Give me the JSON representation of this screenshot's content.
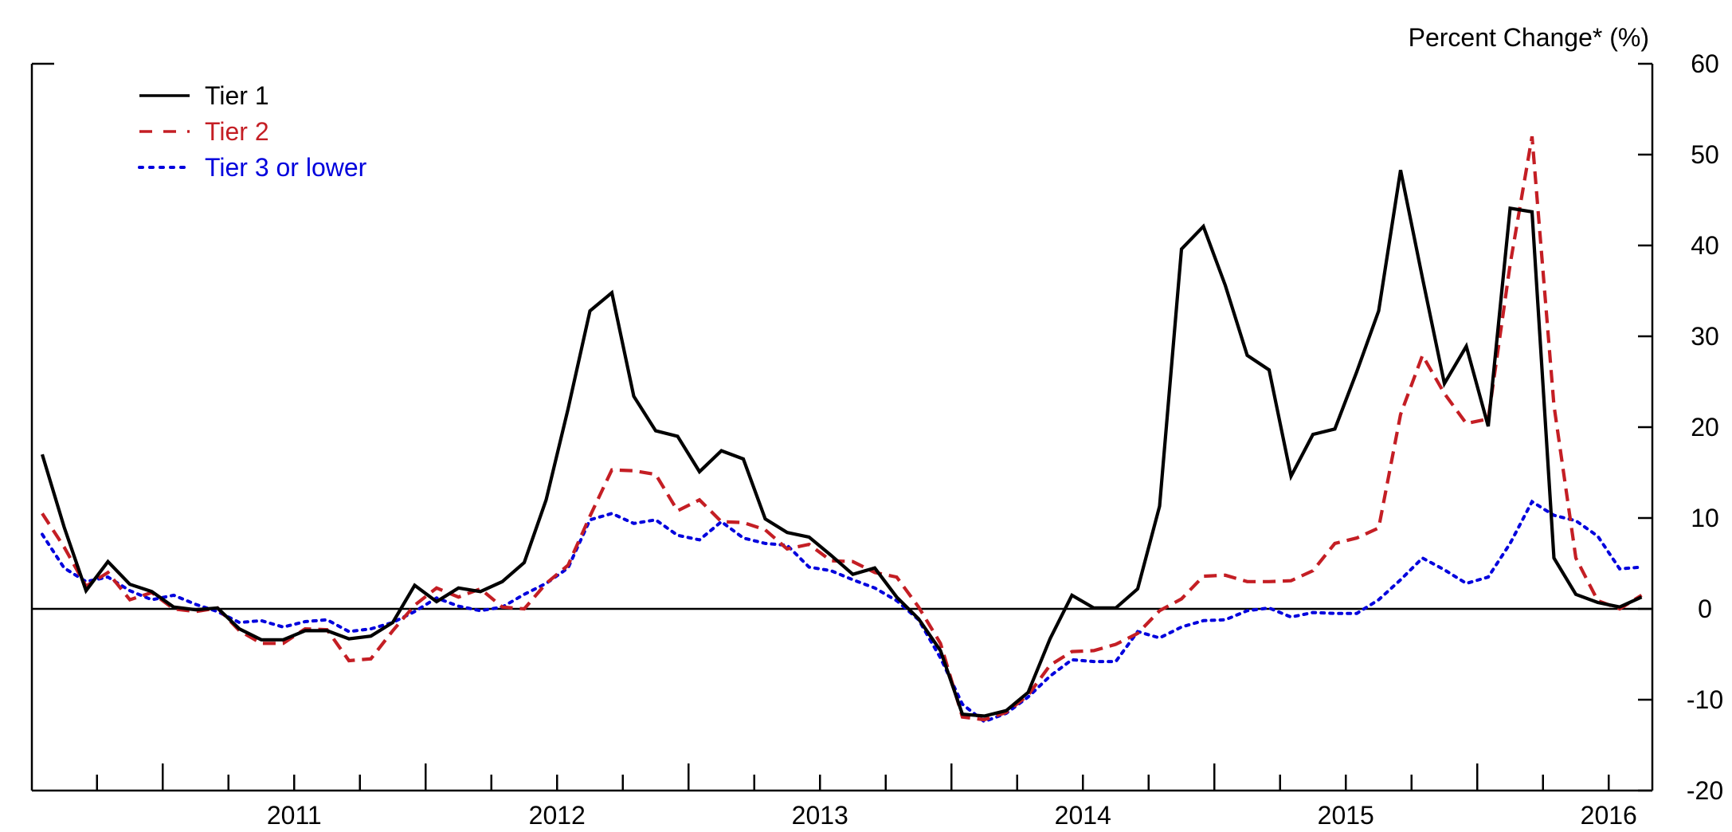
{
  "chart_data": {
    "type": "line",
    "title": "",
    "xlabel": "",
    "ylabel": "Percent Change* (%)",
    "ylim": [
      -20,
      60
    ],
    "yticks": [
      60,
      50,
      40,
      30,
      20,
      10,
      0,
      -10,
      -20
    ],
    "year_labels": [
      "2011",
      "2012",
      "2013",
      "2014",
      "2015",
      "2016"
    ],
    "x_start": "2010-07",
    "x_end": "2016-08",
    "zero_line": true,
    "legend_position": "top-left",
    "series": [
      {
        "name": "Tier 1",
        "color": "#000000",
        "style": "solid",
        "values": [
          17.0,
          9.0,
          2.0,
          5.2,
          2.7,
          1.9,
          0.2,
          -0.1,
          0.1,
          -2.2,
          -3.4,
          -3.4,
          -2.4,
          -2.4,
          -3.3,
          -3.0,
          -1.5,
          2.6,
          0.8,
          2.3,
          1.9,
          3.0,
          5.1,
          12.0,
          22.0,
          32.8,
          34.8,
          23.4,
          19.6,
          19.0,
          15.1,
          17.4,
          16.5,
          9.9,
          8.4,
          7.9,
          5.9,
          3.8,
          4.5,
          1.3,
          -1.1,
          -4.6,
          -11.6,
          -11.8,
          -11.2,
          -9.2,
          -3.3,
          1.5,
          0.1,
          0.1,
          2.2,
          11.3,
          39.6,
          42.1,
          35.6,
          27.9,
          26.3,
          14.6,
          19.2,
          19.8,
          26.1,
          32.8,
          48.3,
          36.4,
          24.8,
          28.9,
          20.1,
          44.1,
          43.7,
          5.6,
          1.6,
          0.7,
          0.2,
          1.3
        ]
      },
      {
        "name": "Tier 2",
        "color": "#c41e24",
        "style": "dashed",
        "values": [
          10.5,
          6.8,
          2.5,
          4.0,
          1.0,
          1.8,
          0.0,
          -0.3,
          0.1,
          -2.4,
          -3.8,
          -3.8,
          -2.2,
          -2.3,
          -5.7,
          -5.5,
          -2.4,
          0.4,
          2.3,
          1.3,
          2.2,
          0.2,
          0.0,
          2.8,
          4.8,
          10.2,
          15.3,
          15.2,
          14.8,
          10.8,
          12.0,
          9.6,
          9.5,
          8.7,
          6.6,
          7.1,
          5.3,
          5.2,
          4.0,
          3.5,
          0.2,
          -3.8,
          -11.9,
          -12.2,
          -11.4,
          -9.5,
          -6.2,
          -4.7,
          -4.6,
          -3.9,
          -2.7,
          -0.2,
          1.1,
          3.6,
          3.7,
          3.0,
          3.0,
          3.1,
          4.2,
          7.2,
          7.8,
          8.9,
          21.4,
          27.9,
          23.7,
          20.4,
          20.9,
          37.9,
          52.0,
          22.4,
          5.6,
          0.9,
          0.0,
          1.5
        ]
      },
      {
        "name": "Tier 3 or lower",
        "color": "#0000dd",
        "style": "dotted",
        "values": [
          8.2,
          4.5,
          3.0,
          3.5,
          2.0,
          1.0,
          1.5,
          0.5,
          -0.3,
          -1.5,
          -1.3,
          -2.0,
          -1.4,
          -1.2,
          -2.5,
          -2.2,
          -1.5,
          -0.3,
          1.2,
          0.3,
          -0.2,
          0.2,
          1.6,
          2.8,
          4.5,
          9.8,
          10.5,
          9.4,
          9.8,
          8.1,
          7.6,
          9.6,
          7.8,
          7.2,
          7.0,
          4.6,
          4.2,
          3.2,
          2.3,
          0.9,
          -1.2,
          -5.4,
          -10.5,
          -12.4,
          -11.5,
          -9.7,
          -7.4,
          -5.6,
          -5.8,
          -5.8,
          -2.5,
          -3.2,
          -2.0,
          -1.3,
          -1.2,
          -0.2,
          0.1,
          -0.9,
          -0.4,
          -0.5,
          -0.5,
          1.0,
          3.2,
          5.6,
          4.3,
          2.8,
          3.5,
          7.2,
          11.8,
          10.3,
          9.7,
          8.0,
          4.4,
          4.6
        ]
      }
    ]
  }
}
